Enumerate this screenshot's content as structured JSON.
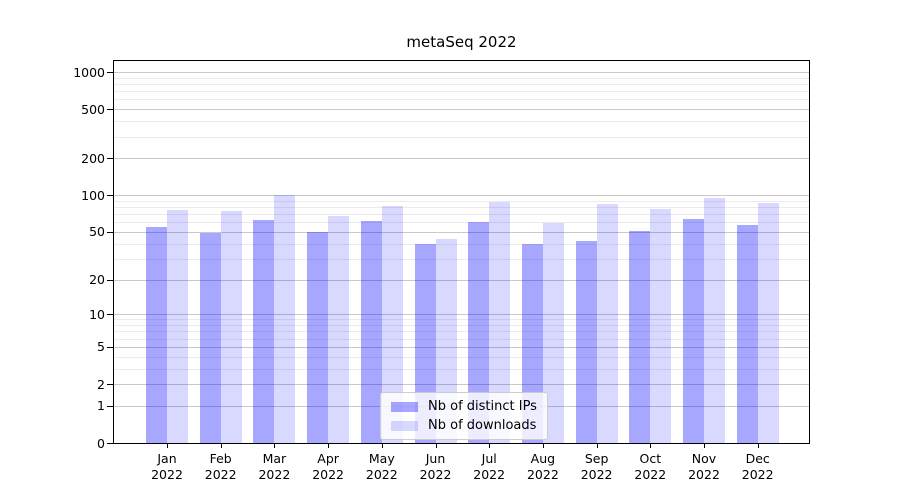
{
  "chart_data": {
    "type": "bar",
    "title": "metaSeq 2022",
    "months": [
      "Jan",
      "Feb",
      "Mar",
      "Apr",
      "May",
      "Jun",
      "Jul",
      "Aug",
      "Sep",
      "Oct",
      "Nov",
      "Dec"
    ],
    "year": "2022",
    "categories": [
      "Jan 2022",
      "Feb 2022",
      "Mar 2022",
      "Apr 2022",
      "May 2022",
      "Jun 2022",
      "Jul 2022",
      "Aug 2022",
      "Sep 2022",
      "Oct 2022",
      "Nov 2022",
      "Dec 2022"
    ],
    "series": [
      {
        "name": "Nb of distinct IPs",
        "color": "rgba(0,0,255,0.345)",
        "values": [
          55,
          49,
          63,
          50,
          62,
          40,
          60,
          40,
          42,
          51,
          64,
          57
        ]
      },
      {
        "name": "Nb of downloads",
        "color": "rgba(0,0,255,0.15)",
        "values": [
          76,
          74,
          101,
          68,
          81,
          44,
          88,
          59,
          85,
          77,
          95,
          86
        ]
      }
    ],
    "yscale": "log1p",
    "ylim": [
      0,
      1280
    ],
    "yticks": [
      1000,
      500,
      200,
      100,
      50,
      20,
      10,
      5,
      2,
      1,
      0
    ],
    "minor_gridlines": [
      900,
      800,
      700,
      600,
      400,
      300,
      90,
      80,
      70,
      60,
      40,
      30,
      9,
      8,
      7,
      6,
      4,
      3
    ],
    "grid": "both",
    "legend_position": "lower-center",
    "xlabel": "",
    "ylabel": ""
  },
  "colors": {
    "bar_distinct_ips": "#a8a8fa",
    "bar_downloads": "#d8d8fa",
    "major_grid": "#c9c9c9",
    "minor_grid": "#ebebeb",
    "axis": "#000000",
    "background": "#ffffff"
  }
}
